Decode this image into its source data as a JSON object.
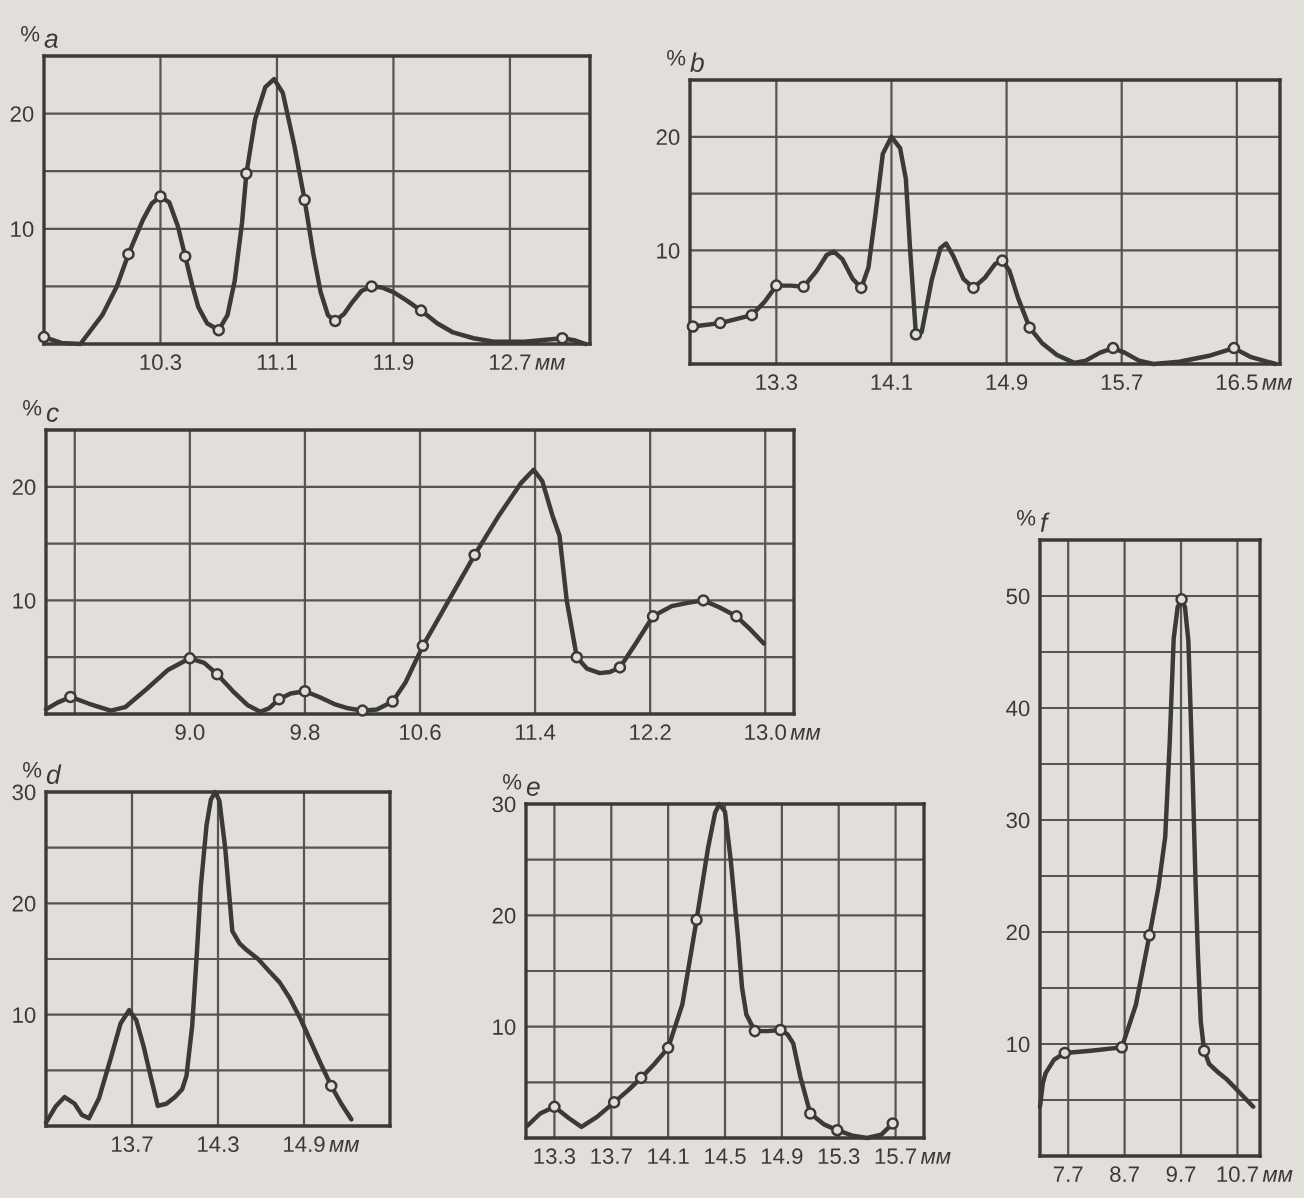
{
  "chart_data": [
    {
      "type": "line",
      "title": "a",
      "xlabel": "мм",
      "ylabel": "%",
      "xlim": [
        9.5,
        13.25
      ],
      "xticks": [
        10.3,
        11.1,
        11.9,
        12.7
      ],
      "ylim": [
        0,
        25
      ],
      "yticks": [
        {
          "value": 5,
          "label": null
        },
        10,
        {
          "value": 15,
          "label": null
        },
        20
      ],
      "grid": true,
      "series": [
        {
          "type": "line",
          "color": "#3a3a3a",
          "x": [
            9.5,
            9.62,
            9.75,
            9.9,
            10.0,
            10.08,
            10.18,
            10.24,
            10.3,
            10.36,
            10.42,
            10.47,
            10.52,
            10.56,
            10.62,
            10.7,
            10.76,
            10.81,
            10.86,
            10.89,
            10.95,
            11.02,
            11.08,
            11.14,
            11.22,
            11.29,
            11.35,
            11.4,
            11.45,
            11.5,
            11.56,
            11.61,
            11.68,
            11.75,
            11.82,
            11.9,
            12.0,
            12.09,
            12.2,
            12.31,
            12.45,
            12.59,
            12.8,
            13.06,
            13.15,
            13.22
          ],
          "values": [
            0.6,
            0.1,
            0,
            2.5,
            5.0,
            7.8,
            10.8,
            12.2,
            12.8,
            12.3,
            10.2,
            7.6,
            5.0,
            3.2,
            1.8,
            1.2,
            2.5,
            5.5,
            10.5,
            14.8,
            19.5,
            22.3,
            23,
            21.8,
            17.2,
            12.5,
            7.8,
            4.5,
            2.5,
            2.0,
            2.6,
            3.5,
            4.6,
            5.0,
            4.9,
            4.5,
            3.7,
            2.9,
            1.8,
            1.0,
            0.5,
            0.2,
            0.2,
            0.5,
            0.3,
            0
          ]
        },
        {
          "type": "scatter",
          "color": "#3a3a3a",
          "marker": "circle",
          "x": [
            9.5,
            10.08,
            10.3,
            10.47,
            10.7,
            10.89,
            11.29,
            11.5,
            11.75,
            12.09,
            13.06
          ],
          "values": [
            0.6,
            7.8,
            12.8,
            7.6,
            1.2,
            14.8,
            12.5,
            2.0,
            5.0,
            2.9,
            0.5
          ]
        }
      ]
    },
    {
      "type": "line",
      "title": "b",
      "xlabel": "мм",
      "ylabel": "%",
      "xlim": [
        12.7,
        16.8
      ],
      "xticks": [
        13.3,
        14.1,
        14.9,
        15.7,
        16.5
      ],
      "ylim": [
        0,
        25
      ],
      "yticks": [
        {
          "value": 5,
          "label": null
        },
        10,
        {
          "value": 15,
          "label": null
        },
        20
      ],
      "grid": true,
      "series": [
        {
          "type": "line",
          "color": "#3a3a3a",
          "x": [
            12.72,
            12.91,
            13.13,
            13.22,
            13.3,
            13.4,
            13.49,
            13.58,
            13.65,
            13.7,
            13.76,
            13.83,
            13.89,
            13.94,
            13.99,
            14.04,
            14.1,
            14.16,
            14.2,
            14.23,
            14.27,
            14.31,
            14.38,
            14.44,
            14.48,
            14.53,
            14.6,
            14.67,
            14.75,
            14.82,
            14.87,
            14.92,
            14.98,
            15.06,
            15.15,
            15.25,
            15.37,
            15.45,
            15.55,
            15.64,
            15.72,
            15.82,
            15.92,
            16.1,
            16.3,
            16.48,
            16.6,
            16.77
          ],
          "values": [
            3.3,
            3.6,
            4.3,
            5.5,
            6.9,
            6.9,
            6.8,
            8.2,
            9.6,
            9.9,
            9.2,
            7.5,
            6.7,
            8.5,
            13.3,
            18.5,
            20,
            19,
            16.3,
            10,
            2.6,
            2.8,
            7.4,
            10.2,
            10.6,
            9.5,
            7.5,
            6.7,
            7.6,
            8.8,
            9.1,
            8.2,
            5.8,
            3.2,
            1.8,
            0.8,
            0.1,
            0.3,
            1.0,
            1.4,
            1.0,
            0.3,
            0,
            0.2,
            0.7,
            1.4,
            0.6,
            0
          ]
        },
        {
          "type": "scatter",
          "color": "#3a3a3a",
          "marker": "circle",
          "x": [
            12.72,
            12.91,
            13.13,
            13.3,
            13.49,
            13.89,
            14.27,
            14.67,
            14.87,
            15.06,
            15.64,
            16.48
          ],
          "values": [
            3.3,
            3.6,
            4.3,
            6.9,
            6.8,
            6.7,
            2.6,
            6.7,
            9.1,
            3.2,
            1.4,
            1.4
          ]
        }
      ]
    },
    {
      "type": "line",
      "title": "c",
      "xlabel": "мм",
      "ylabel": "%",
      "xlim": [
        8.0,
        13.2
      ],
      "xticks": [
        {
          "value": 8.2,
          "label": null
        },
        {
          "value": 9,
          "label": "9.0"
        },
        9.8,
        10.6,
        11.4,
        12.2,
        {
          "value": 13,
          "label": "13.0"
        }
      ],
      "ylim": [
        0,
        25
      ],
      "yticks": [
        {
          "value": 5,
          "label": null
        },
        10,
        {
          "value": 15,
          "label": null
        },
        20
      ],
      "grid": true,
      "series": [
        {
          "type": "line",
          "color": "#3a3a3a",
          "x": [
            8.0,
            8.08,
            8.17,
            8.3,
            8.45,
            8.55,
            8.7,
            8.85,
            9.0,
            9.1,
            9.19,
            9.3,
            9.4,
            9.49,
            9.55,
            9.62,
            9.7,
            9.8,
            9.9,
            10.0,
            10.1,
            10.2,
            10.3,
            10.41,
            10.5,
            10.62,
            10.8,
            10.98,
            11.15,
            11.3,
            11.39,
            11.45,
            11.52,
            11.57,
            11.62,
            11.69,
            11.76,
            11.85,
            11.92,
            11.99,
            12.1,
            12.22,
            12.35,
            12.47,
            12.57,
            12.68,
            12.8,
            12.9,
            12.99
          ],
          "values": [
            0.4,
            1.0,
            1.5,
            0.9,
            0.3,
            0.6,
            2.2,
            3.9,
            4.9,
            4.5,
            3.5,
            2.0,
            0.8,
            0.2,
            0.5,
            1.3,
            1.8,
            2.0,
            1.5,
            0.9,
            0.5,
            0.3,
            0.4,
            1.1,
            2.8,
            6.0,
            10.0,
            14.0,
            17.5,
            20.3,
            21.5,
            20.5,
            17.5,
            15.7,
            10,
            5.0,
            4.0,
            3.6,
            3.7,
            4.1,
            6.2,
            8.6,
            9.5,
            9.8,
            10.0,
            9.4,
            8.6,
            7.4,
            6.2
          ]
        },
        {
          "type": "scatter",
          "color": "#3a3a3a",
          "marker": "circle",
          "x": [
            8.17,
            9.0,
            9.19,
            9.62,
            9.8,
            10.2,
            10.41,
            10.62,
            10.98,
            11.69,
            11.99,
            12.22,
            12.57,
            12.8
          ],
          "values": [
            1.5,
            4.9,
            3.5,
            1.3,
            2.0,
            0.3,
            1.1,
            6.0,
            14.0,
            5.0,
            4.1,
            8.6,
            10.0,
            8.6
          ]
        }
      ]
    },
    {
      "type": "line",
      "title": "d",
      "xlabel": "мм",
      "ylabel": "%",
      "xlim": [
        13.1,
        15.5
      ],
      "xticks": [
        13.7,
        14.3,
        14.9
      ],
      "ylim": [
        0,
        30
      ],
      "yticks": [
        {
          "value": 5,
          "label": null
        },
        10,
        {
          "value": 15,
          "label": null
        },
        20,
        {
          "value": 25,
          "label": null
        },
        30
      ],
      "grid": true,
      "series": [
        {
          "type": "line",
          "color": "#3a3a3a",
          "x": [
            13.1,
            13.17,
            13.23,
            13.3,
            13.35,
            13.4,
            13.47,
            13.55,
            13.62,
            13.68,
            13.73,
            13.78,
            13.82,
            13.88,
            13.94,
            14.0,
            14.05,
            14.08,
            14.12,
            14.15,
            14.18,
            14.22,
            14.25,
            14.28,
            14.31,
            14.35,
            14.38,
            14.4,
            14.45,
            14.5,
            14.58,
            14.65,
            14.73,
            14.8,
            14.88,
            14.95,
            15.02,
            15.09,
            15.16,
            15.23
          ],
          "values": [
            0.3,
            1.8,
            2.6,
            2.0,
            1.0,
            0.7,
            2.5,
            6.0,
            9.2,
            10.4,
            9.5,
            7.2,
            5.0,
            1.8,
            2.0,
            2.6,
            3.3,
            4.5,
            9.0,
            15,
            21.5,
            27,
            29.3,
            30,
            29.2,
            25,
            20.5,
            17.5,
            16.4,
            15.8,
            15.0,
            14.0,
            12.9,
            11.5,
            9.5,
            7.5,
            5.5,
            3.6,
            2.0,
            0.6
          ]
        },
        {
          "type": "scatter",
          "color": "#3a3a3a",
          "marker": "circle",
          "x": [
            15.09
          ],
          "values": [
            3.6
          ]
        }
      ]
    },
    {
      "type": "line",
      "title": "e",
      "xlabel": "мм",
      "ylabel": "%",
      "xlim": [
        13.1,
        15.9
      ],
      "xticks": [
        13.3,
        13.7,
        14.1,
        14.5,
        14.9,
        15.3,
        15.7
      ],
      "ylim": [
        0,
        30
      ],
      "yticks": [
        {
          "value": 5,
          "label": null
        },
        10,
        {
          "value": 15,
          "label": null
        },
        20,
        {
          "value": 25,
          "label": null
        },
        30
      ],
      "grid": true,
      "series": [
        {
          "type": "line",
          "color": "#3a3a3a",
          "x": [
            13.11,
            13.2,
            13.3,
            13.4,
            13.49,
            13.6,
            13.72,
            13.82,
            13.91,
            14.0,
            14.1,
            14.2,
            14.3,
            14.38,
            14.43,
            14.46,
            14.5,
            14.54,
            14.59,
            14.62,
            14.65,
            14.71,
            14.8,
            14.89,
            14.94,
            14.98,
            15.03,
            15.1,
            15.2,
            15.29,
            15.4,
            15.5,
            15.6,
            15.68
          ],
          "values": [
            1.1,
            2.2,
            2.8,
            1.8,
            1.0,
            1.9,
            3.2,
            4.3,
            5.4,
            6.6,
            8.1,
            12.0,
            19.6,
            26,
            29.2,
            30,
            29.3,
            25,
            18.2,
            13.5,
            11.1,
            9.6,
            9.6,
            9.7,
            9.3,
            8.5,
            5.5,
            2.2,
            1.2,
            0.7,
            0.2,
            0,
            0.3,
            1.3
          ]
        },
        {
          "type": "scatter",
          "color": "#3a3a3a",
          "marker": "circle",
          "x": [
            13.3,
            13.72,
            13.91,
            14.1,
            14.3,
            14.71,
            14.89,
            15.1,
            15.29,
            15.68
          ],
          "values": [
            2.8,
            3.2,
            5.4,
            8.1,
            19.6,
            9.6,
            9.7,
            2.2,
            0.7,
            1.3
          ]
        }
      ]
    },
    {
      "type": "line",
      "title": "f",
      "xlabel": "мм",
      "ylabel": "%",
      "xlim": [
        7.2,
        11.1
      ],
      "xticks": [
        7.7,
        8.7,
        9.7,
        10.7
      ],
      "ylim": [
        0,
        55
      ],
      "yticks": [
        {
          "value": 5,
          "label": null
        },
        10,
        {
          "value": 15,
          "label": null
        },
        20,
        {
          "value": 25,
          "label": null
        },
        30,
        {
          "value": 35,
          "label": null
        },
        40,
        {
          "value": 45,
          "label": null
        },
        50
      ],
      "grid": true,
      "series": [
        {
          "type": "line",
          "color": "#3a3a3a",
          "x": [
            7.2,
            7.25,
            7.3,
            7.45,
            7.64,
            8.1,
            8.65,
            8.9,
            9.14,
            9.3,
            9.42,
            9.5,
            9.57,
            9.64,
            9.71,
            9.77,
            9.83,
            9.9,
            9.96,
            10.0,
            10.05,
            10.11,
            10.2,
            10.35,
            10.52,
            10.75,
            10.98
          ],
          "values": [
            4.4,
            6.5,
            7.4,
            8.6,
            9.2,
            9.4,
            9.7,
            13.5,
            19.7,
            24,
            28.5,
            37,
            46.2,
            49,
            49.7,
            49,
            46,
            35,
            24,
            17.9,
            12,
            9.4,
            8.2,
            7.5,
            6.8,
            5.6,
            4.4
          ]
        },
        {
          "type": "scatter",
          "color": "#3a3a3a",
          "marker": "circle",
          "x": [
            7.64,
            8.65,
            9.14,
            9.71,
            10.11
          ],
          "values": [
            9.2,
            9.7,
            19.7,
            49.7,
            9.4
          ]
        }
      ]
    }
  ]
}
